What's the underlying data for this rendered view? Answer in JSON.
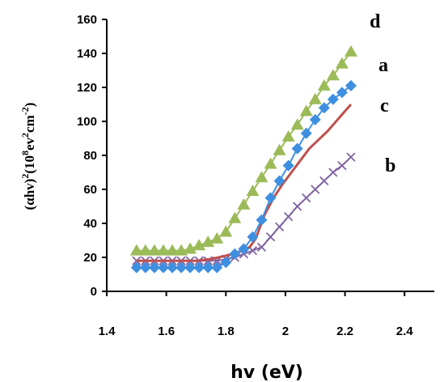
{
  "chart_data": {
    "type": "scatter",
    "xlabel": "hv (eV)",
    "ylabel": "(αhv)²(10⁸ev²cm⁻²)",
    "ylabel_parts": {
      "base1": "(αhv)",
      "sup1": "2",
      "base2": "(10",
      "sup2": "8",
      "base3": "ev",
      "sup3": "2",
      "base4": "cm",
      "sup4": "-2",
      "base5": ")"
    },
    "xlim": [
      1.4,
      2.5
    ],
    "ylim": [
      0,
      160
    ],
    "x_ticks": [
      "1.4",
      "1.6",
      "1.8",
      "2",
      "2.2",
      "2.4"
    ],
    "y_ticks": [
      "0",
      "20",
      "40",
      "60",
      "80",
      "100",
      "120",
      "140",
      "160"
    ],
    "grid": false,
    "series": [
      {
        "name": "a",
        "color": "#3e8fe0",
        "marker": "diamond",
        "points": [
          [
            1.5,
            14
          ],
          [
            1.53,
            14
          ],
          [
            1.56,
            14
          ],
          [
            1.59,
            14
          ],
          [
            1.62,
            14
          ],
          [
            1.65,
            14
          ],
          [
            1.68,
            14
          ],
          [
            1.71,
            14
          ],
          [
            1.74,
            14
          ],
          [
            1.77,
            14
          ],
          [
            1.8,
            17
          ],
          [
            1.83,
            22
          ],
          [
            1.86,
            25
          ],
          [
            1.89,
            32
          ],
          [
            1.92,
            42
          ],
          [
            1.95,
            55
          ],
          [
            1.98,
            65
          ],
          [
            2.01,
            74
          ],
          [
            2.04,
            84
          ],
          [
            2.07,
            93
          ],
          [
            2.1,
            101
          ],
          [
            2.13,
            108
          ],
          [
            2.16,
            113
          ],
          [
            2.19,
            117
          ],
          [
            2.22,
            121
          ]
        ]
      },
      {
        "name": "b",
        "color": "#8064a2",
        "marker": "x",
        "points": [
          [
            1.5,
            18
          ],
          [
            1.53,
            18
          ],
          [
            1.56,
            18
          ],
          [
            1.59,
            18
          ],
          [
            1.62,
            18
          ],
          [
            1.65,
            18
          ],
          [
            1.68,
            18
          ],
          [
            1.71,
            18
          ],
          [
            1.74,
            18
          ],
          [
            1.77,
            18
          ],
          [
            1.8,
            19
          ],
          [
            1.83,
            20
          ],
          [
            1.86,
            22
          ],
          [
            1.89,
            24
          ],
          [
            1.92,
            26
          ],
          [
            1.95,
            32
          ],
          [
            1.98,
            38
          ],
          [
            2.01,
            44
          ],
          [
            2.04,
            50
          ],
          [
            2.07,
            55
          ],
          [
            2.1,
            60
          ],
          [
            2.13,
            65
          ],
          [
            2.16,
            70
          ],
          [
            2.19,
            74
          ],
          [
            2.22,
            79
          ]
        ]
      },
      {
        "name": "c",
        "color": "#c0504d",
        "marker": "line",
        "points": [
          [
            1.5,
            18
          ],
          [
            1.55,
            18
          ],
          [
            1.6,
            18
          ],
          [
            1.65,
            18
          ],
          [
            1.7,
            18
          ],
          [
            1.75,
            19
          ],
          [
            1.8,
            21
          ],
          [
            1.84,
            23
          ],
          [
            1.88,
            26
          ],
          [
            1.9,
            31
          ],
          [
            1.93,
            45
          ],
          [
            1.96,
            55
          ],
          [
            1.99,
            63
          ],
          [
            2.02,
            70
          ],
          [
            2.05,
            77
          ],
          [
            2.08,
            84
          ],
          [
            2.11,
            89
          ],
          [
            2.14,
            94
          ],
          [
            2.17,
            100
          ],
          [
            2.2,
            106
          ],
          [
            2.22,
            110
          ]
        ]
      },
      {
        "name": "d",
        "color": "#9bbb59",
        "marker": "triangle",
        "points": [
          [
            1.5,
            24
          ],
          [
            1.53,
            24
          ],
          [
            1.56,
            24
          ],
          [
            1.59,
            24
          ],
          [
            1.62,
            24
          ],
          [
            1.65,
            24
          ],
          [
            1.68,
            25
          ],
          [
            1.71,
            27
          ],
          [
            1.74,
            29
          ],
          [
            1.77,
            31
          ],
          [
            1.8,
            35
          ],
          [
            1.83,
            43
          ],
          [
            1.86,
            51
          ],
          [
            1.89,
            59
          ],
          [
            1.92,
            67
          ],
          [
            1.95,
            75
          ],
          [
            1.98,
            83
          ],
          [
            2.01,
            91
          ],
          [
            2.04,
            98
          ],
          [
            2.07,
            106
          ],
          [
            2.1,
            113
          ],
          [
            2.13,
            121
          ],
          [
            2.16,
            127
          ],
          [
            2.19,
            134
          ],
          [
            2.22,
            141
          ]
        ]
      }
    ]
  }
}
